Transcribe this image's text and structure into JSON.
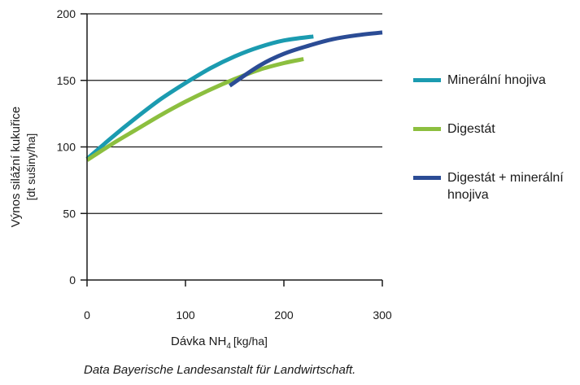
{
  "chart_data": {
    "type": "line",
    "xlabel_main": "Dávka NH",
    "xlabel_sub": "4",
    "xlabel_unit": "[kg/ha]",
    "ylabel_main": "Výnos silážní kukuřice",
    "ylabel_unit": "[dt sušiny/ha]",
    "xlim": [
      0,
      300
    ],
    "ylim": [
      0,
      200
    ],
    "x_ticks": [
      "0",
      "100",
      "200",
      "300"
    ],
    "y_ticks": [
      "0",
      "50",
      "100",
      "150",
      "200"
    ],
    "grid": "horizontal",
    "legend_position": "right",
    "series": [
      {
        "name": "Minerální hnojiva",
        "color": "#1b9bb0",
        "x": [
          0,
          25,
          50,
          75,
          100,
          125,
          150,
          175,
          200,
          230
        ],
        "y": [
          91,
          107,
          122,
          136,
          148,
          159,
          168,
          175,
          180,
          183
        ]
      },
      {
        "name": "Digestát",
        "color": "#8cbf3f",
        "x": [
          0,
          25,
          50,
          75,
          100,
          125,
          150,
          175,
          200,
          220
        ],
        "y": [
          90,
          102,
          113,
          124,
          134,
          143,
          151,
          158,
          163,
          166
        ]
      },
      {
        "name": "Digestát + minerální hnojiva",
        "color": "#2b4c95",
        "x": [
          145,
          175,
          200,
          225,
          250,
          275,
          300
        ],
        "y": [
          146,
          161,
          170,
          176,
          181,
          184,
          186
        ]
      }
    ]
  },
  "legend": [
    {
      "label": "Minerální hnojiva",
      "color": "#1b9bb0"
    },
    {
      "label": "Digestát",
      "color": "#8cbf3f"
    },
    {
      "label": "Digestát + minerální hnojiva",
      "color": "#2b4c95"
    }
  ],
  "source": "Data Bayerische Landesanstalt für Landwirtschaft."
}
